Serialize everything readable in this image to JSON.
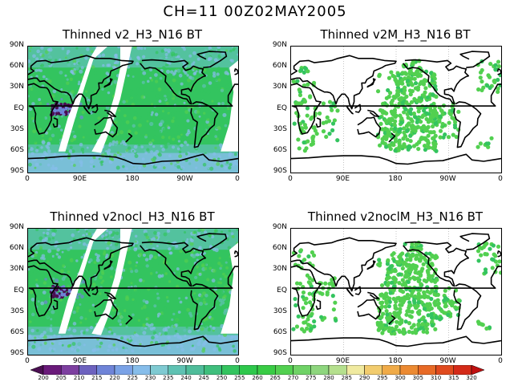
{
  "title": "CH=11    00Z02MAY2005",
  "panels": [
    {
      "title": "Thinned v2_H3_N16 BT",
      "coverage": "full-orbit"
    },
    {
      "title": "Thinned v2M_H3_N16 BT",
      "coverage": "sparse"
    },
    {
      "title": "Thinned v2nocl_H3_N16 BT",
      "coverage": "full-orbit"
    },
    {
      "title": "Thinned v2noclM_H3_N16 BT",
      "coverage": "sparse"
    }
  ],
  "lat_labels": [
    "90N",
    "60N",
    "30N",
    "EQ",
    "30S",
    "60S",
    "90S"
  ],
  "lon_labels": [
    "0",
    "90E",
    "180",
    "90W",
    "0"
  ],
  "colorbar": {
    "labels": [
      "200",
      "205",
      "210",
      "215",
      "220",
      "225",
      "230",
      "235",
      "240",
      "245",
      "250",
      "255",
      "260",
      "265",
      "270",
      "275",
      "280",
      "285",
      "290",
      "295",
      "300",
      "305",
      "310",
      "315",
      "320"
    ],
    "colors": [
      "#4b0f52",
      "#6a1a7a",
      "#7d3fa0",
      "#6d62bf",
      "#6f84d8",
      "#7aa2e6",
      "#86bdea",
      "#7fcad2",
      "#5fc2b3",
      "#4fbd9b",
      "#3fbf7d",
      "#33c45f",
      "#2ec84c",
      "#39cc45",
      "#52d050",
      "#6fd266",
      "#8ed67e",
      "#b5e08e",
      "#f0eaa0",
      "#f2cc6e",
      "#f0ab48",
      "#ec8a32",
      "#e86a26",
      "#e04a1e",
      "#d42a18",
      "#c01010"
    ]
  },
  "map_colors": {
    "main_green": "#33c45f",
    "light_green": "#52d050",
    "teal": "#5fc2b3",
    "light_blue": "#86bdea",
    "blue": "#6f84d8",
    "purple": "#4b0f52"
  }
}
